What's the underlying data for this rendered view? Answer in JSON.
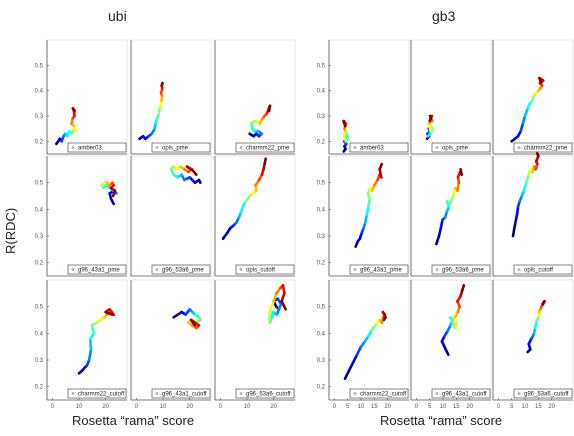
{
  "ylabel": "R(RDC)",
  "chart_data": [
    {
      "type": "line",
      "title": "ubi",
      "xlabel": "Rosetta “rama” score",
      "ylabel": "R(RDC)",
      "xlim": [
        -2,
        28
      ],
      "ylim": [
        0.15,
        0.6
      ],
      "xticks": [
        0,
        10,
        20
      ],
      "yticks": [
        0.2,
        0.3,
        0.4,
        0.5
      ],
      "color_scale": "jet (blue = start, red = end of trajectory)",
      "legend_position": "bottom-right",
      "panels": [
        {
          "label": "amber03",
          "x": [
            1.5,
            2.2,
            2.8,
            3.5,
            4.2,
            4.8,
            5.6,
            6.3,
            7.4,
            8.2,
            8.8,
            8.1,
            7.2,
            7.6,
            8.3,
            8.1,
            7.7,
            8.4
          ],
          "y": [
            0.19,
            0.2,
            0.21,
            0.2,
            0.22,
            0.23,
            0.22,
            0.24,
            0.23,
            0.25,
            0.24,
            0.26,
            0.27,
            0.29,
            0.3,
            0.32,
            0.33,
            0.32
          ]
        },
        {
          "label": "opls_pme",
          "x": [
            1.2,
            2.5,
            3.4,
            4.6,
            5.8,
            6.9,
            7.2,
            7.8,
            8.4,
            8.8,
            9.1,
            9.4,
            9.6,
            9.3,
            9.7,
            9.5,
            9.8,
            9.6
          ],
          "y": [
            0.21,
            0.22,
            0.21,
            0.22,
            0.23,
            0.25,
            0.27,
            0.29,
            0.31,
            0.33,
            0.34,
            0.36,
            0.38,
            0.39,
            0.41,
            0.42,
            0.43,
            0.42
          ]
        },
        {
          "label": "charmm22_pme",
          "x": [
            11.0,
            12.5,
            13.5,
            14.5,
            15.5,
            14.2,
            13.0,
            12.0,
            11.6,
            12.8,
            13.8,
            14.8,
            15.8,
            16.6,
            17.5,
            18.2,
            18.6,
            18.3
          ],
          "y": [
            0.23,
            0.22,
            0.23,
            0.22,
            0.23,
            0.24,
            0.24,
            0.25,
            0.27,
            0.28,
            0.28,
            0.27,
            0.29,
            0.3,
            0.31,
            0.33,
            0.34,
            0.32
          ]
        },
        {
          "label": "g96_43a1_pme",
          "x": [
            23.0,
            22.0,
            21.5,
            23.2,
            24.0,
            22.8,
            21.6,
            20.4,
            19.2,
            18.6,
            19.8,
            20.6,
            21.5,
            22.5,
            23.0,
            22.0,
            23.5,
            22.8
          ],
          "y": [
            0.42,
            0.44,
            0.46,
            0.47,
            0.46,
            0.47,
            0.48,
            0.49,
            0.48,
            0.49,
            0.5,
            0.5,
            0.49,
            0.5,
            0.49,
            0.48,
            0.47,
            0.45
          ]
        },
        {
          "label": "g96_53a6_pme",
          "x": [
            24.0,
            23.5,
            22.0,
            20.0,
            18.0,
            17.0,
            15.5,
            14.0,
            13.0,
            13.8,
            15.0,
            16.5,
            18.0,
            19.5,
            20.5,
            19.0,
            20.8,
            22.5
          ],
          "y": [
            0.5,
            0.51,
            0.5,
            0.52,
            0.51,
            0.53,
            0.52,
            0.53,
            0.55,
            0.56,
            0.55,
            0.56,
            0.55,
            0.54,
            0.55,
            0.56,
            0.55,
            0.53
          ]
        },
        {
          "label": "opls_cutoff",
          "x": [
            1.0,
            2.5,
            3.8,
            5.0,
            6.0,
            7.0,
            7.8,
            8.8,
            9.6,
            11.0,
            12.2,
            13.5,
            13.2,
            14.5,
            15.6,
            16.2,
            16.6,
            17.0
          ],
          "y": [
            0.29,
            0.31,
            0.33,
            0.34,
            0.35,
            0.37,
            0.39,
            0.42,
            0.43,
            0.45,
            0.46,
            0.47,
            0.49,
            0.51,
            0.53,
            0.55,
            0.57,
            0.59
          ]
        },
        {
          "label": "charmm22_cutoff",
          "x": [
            10.0,
            11.2,
            12.0,
            13.0,
            13.8,
            14.5,
            14.2,
            15.6,
            14.8,
            16.6,
            18.0,
            19.5,
            20.5,
            22.0,
            23.0,
            21.5,
            20.0,
            22.5
          ],
          "y": [
            0.25,
            0.26,
            0.27,
            0.28,
            0.3,
            0.34,
            0.38,
            0.4,
            0.43,
            0.44,
            0.45,
            0.46,
            0.47,
            0.48,
            0.47,
            0.49,
            0.48,
            0.47
          ]
        },
        {
          "label": "g96_43a1_cutoff",
          "x": [
            14.0,
            15.5,
            17.0,
            18.5,
            20.0,
            21.0,
            22.0,
            23.5,
            24.0,
            22.5,
            21.0,
            19.5,
            21.0,
            22.5,
            23.5,
            22.0,
            20.5,
            22.0
          ],
          "y": [
            0.46,
            0.47,
            0.48,
            0.47,
            0.49,
            0.48,
            0.47,
            0.46,
            0.45,
            0.44,
            0.45,
            0.44,
            0.43,
            0.42,
            0.43,
            0.44,
            0.45,
            0.43
          ]
        },
        {
          "label": "g96_53a6_cutoff",
          "x": [
            22.0,
            21.0,
            20.0,
            21.5,
            22.8,
            21.2,
            19.8,
            19.0,
            18.6,
            18.4,
            18.8,
            20.0,
            21.0,
            22.5,
            23.5,
            24.0,
            23.0,
            24.5
          ],
          "y": [
            0.49,
            0.5,
            0.52,
            0.53,
            0.51,
            0.47,
            0.48,
            0.45,
            0.44,
            0.46,
            0.49,
            0.52,
            0.55,
            0.57,
            0.58,
            0.55,
            0.52,
            0.49
          ]
        }
      ]
    },
    {
      "type": "line",
      "title": "gb3",
      "xlabel": "Rosetta “rama” score",
      "ylabel": "R(RDC)",
      "xlim": [
        -2,
        28
      ],
      "ylim": [
        0.15,
        0.6
      ],
      "xticks": [
        0,
        5,
        10,
        15,
        20
      ],
      "yticks": [
        0.2,
        0.3,
        0.4,
        0.5
      ],
      "color_scale": "jet (blue = start, red = end of trajectory)",
      "legend_position": "bottom-right",
      "panels": [
        {
          "label": "amber03",
          "x": [
            3.5,
            4.2,
            3.8,
            4.5,
            3.6,
            4.8,
            4.0,
            4.6,
            5.2,
            4.4,
            3.6,
            4.2,
            3.8,
            4.4,
            3.4,
            3.8,
            4.1,
            3.6
          ],
          "y": [
            0.16,
            0.17,
            0.18,
            0.19,
            0.2,
            0.21,
            0.22,
            0.23,
            0.21,
            0.2,
            0.22,
            0.24,
            0.25,
            0.27,
            0.28,
            0.27,
            0.26,
            0.28
          ]
        },
        {
          "label": "opls_pme",
          "x": [
            4.0,
            4.8,
            4.2,
            5.4,
            4.6,
            5.2,
            4.4,
            5.8,
            5.0,
            6.2,
            5.4,
            4.8,
            6.0,
            5.2,
            5.8,
            5.0,
            5.6,
            5.2
          ],
          "y": [
            0.21,
            0.22,
            0.23,
            0.24,
            0.25,
            0.23,
            0.22,
            0.24,
            0.26,
            0.25,
            0.24,
            0.27,
            0.28,
            0.29,
            0.3,
            0.28,
            0.29,
            0.3
          ]
        },
        {
          "label": "charmm22_pme",
          "x": [
            5.0,
            6.2,
            7.4,
            8.4,
            9.2,
            10.0,
            11.0,
            11.8,
            12.6,
            13.4,
            14.2,
            15.0,
            15.8,
            16.4,
            15.6,
            16.8,
            15.4,
            16.0
          ],
          "y": [
            0.2,
            0.21,
            0.22,
            0.24,
            0.27,
            0.3,
            0.33,
            0.35,
            0.36,
            0.38,
            0.39,
            0.4,
            0.41,
            0.42,
            0.43,
            0.44,
            0.45,
            0.43
          ]
        },
        {
          "label": "g96_43a1_pme",
          "x": [
            8.0,
            8.8,
            9.6,
            10.2,
            11.0,
            11.6,
            12.2,
            12.8,
            13.2,
            12.6,
            13.6,
            14.2,
            15.0,
            16.2,
            17.0,
            17.6,
            17.0,
            17.8
          ],
          "y": [
            0.26,
            0.28,
            0.29,
            0.31,
            0.33,
            0.35,
            0.38,
            0.41,
            0.44,
            0.46,
            0.48,
            0.47,
            0.49,
            0.51,
            0.53,
            0.52,
            0.55,
            0.57
          ]
        },
        {
          "label": "g96_53a6_pme",
          "x": [
            7.5,
            8.5,
            9.2,
            9.8,
            10.8,
            11.4,
            12.2,
            11.6,
            12.6,
            13.4,
            14.0,
            14.6,
            15.4,
            16.0,
            15.6,
            16.4,
            17.0,
            16.6
          ],
          "y": [
            0.27,
            0.3,
            0.33,
            0.36,
            0.37,
            0.39,
            0.41,
            0.43,
            0.42,
            0.44,
            0.46,
            0.48,
            0.47,
            0.5,
            0.52,
            0.54,
            0.53,
            0.55
          ]
        },
        {
          "label": "opls_cutoff",
          "x": [
            5.5,
            6.2,
            7.0,
            7.4,
            8.0,
            8.8,
            9.6,
            10.2,
            10.8,
            11.4,
            12.0,
            12.8,
            13.4,
            14.0,
            14.6,
            14.2,
            15.0,
            14.6
          ],
          "y": [
            0.3,
            0.34,
            0.38,
            0.41,
            0.43,
            0.45,
            0.47,
            0.49,
            0.51,
            0.53,
            0.55,
            0.54,
            0.56,
            0.55,
            0.57,
            0.58,
            0.6,
            0.61
          ]
        },
        {
          "label": "charmm22_cutoff",
          "x": [
            4.0,
            5.5,
            7.0,
            8.5,
            10.0,
            11.5,
            12.8,
            13.8,
            14.6,
            15.4,
            16.2,
            17.0,
            17.8,
            18.4,
            19.0,
            18.2,
            19.2,
            18.6
          ],
          "y": [
            0.23,
            0.26,
            0.29,
            0.32,
            0.35,
            0.37,
            0.39,
            0.41,
            0.42,
            0.43,
            0.44,
            0.45,
            0.44,
            0.46,
            0.47,
            0.48,
            0.46,
            0.45
          ]
        },
        {
          "label": "g96_43a1_cutoff",
          "x": [
            12.0,
            11.0,
            9.6,
            10.6,
            11.8,
            12.8,
            13.6,
            12.6,
            13.8,
            14.6,
            15.2,
            14.4,
            15.6,
            16.2,
            15.4,
            16.6,
            17.2,
            17.8
          ],
          "y": [
            0.32,
            0.34,
            0.37,
            0.39,
            0.41,
            0.43,
            0.45,
            0.46,
            0.44,
            0.42,
            0.44,
            0.46,
            0.48,
            0.5,
            0.52,
            0.54,
            0.56,
            0.58
          ]
        },
        {
          "label": "g96_53a6_cutoff",
          "x": [
            11.0,
            12.0,
            11.4,
            12.4,
            13.0,
            13.4,
            13.8,
            14.2,
            14.6,
            15.0,
            15.4,
            15.2,
            15.8,
            16.2,
            16.8,
            17.2,
            16.6,
            17.4
          ],
          "y": [
            0.33,
            0.34,
            0.36,
            0.38,
            0.39,
            0.4,
            0.42,
            0.44,
            0.45,
            0.46,
            0.47,
            0.48,
            0.49,
            0.5,
            0.51,
            0.52,
            0.51,
            0.52
          ]
        }
      ]
    }
  ]
}
